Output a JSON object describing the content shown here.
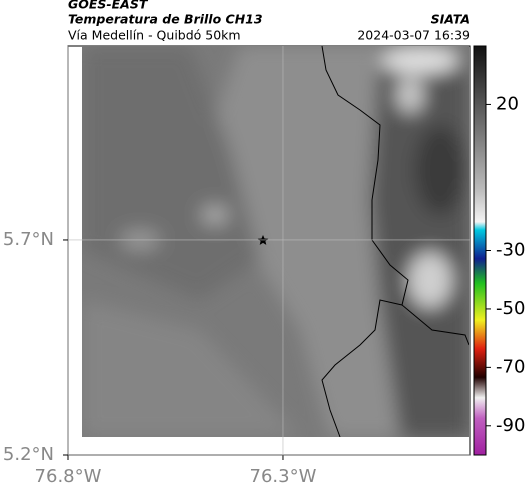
{
  "header": {
    "title": "GOES-EAST",
    "subtitle": "Temperatura de Brillo CH13",
    "location": "Vía Medellín - Quibdó 50km",
    "source": "SIATA",
    "datetime": "2024-03-07 16:39"
  },
  "map": {
    "xlim": [
      -76.8,
      -75.865
    ],
    "ylim": [
      5.2,
      6.151
    ],
    "xticks": [
      {
        "value": -76.8,
        "label": "76.8°W"
      },
      {
        "value": -76.3,
        "label": "76.3°W"
      }
    ],
    "yticks": [
      {
        "value": 5.7,
        "label": "5.7°N"
      },
      {
        "value": 5.2,
        "label": "5.2°N"
      }
    ],
    "grid": true
  },
  "colorbar": {
    "clim": [
      -100,
      40
    ],
    "ticks": [
      20,
      -30,
      -50,
      -70,
      -90
    ]
  }
}
